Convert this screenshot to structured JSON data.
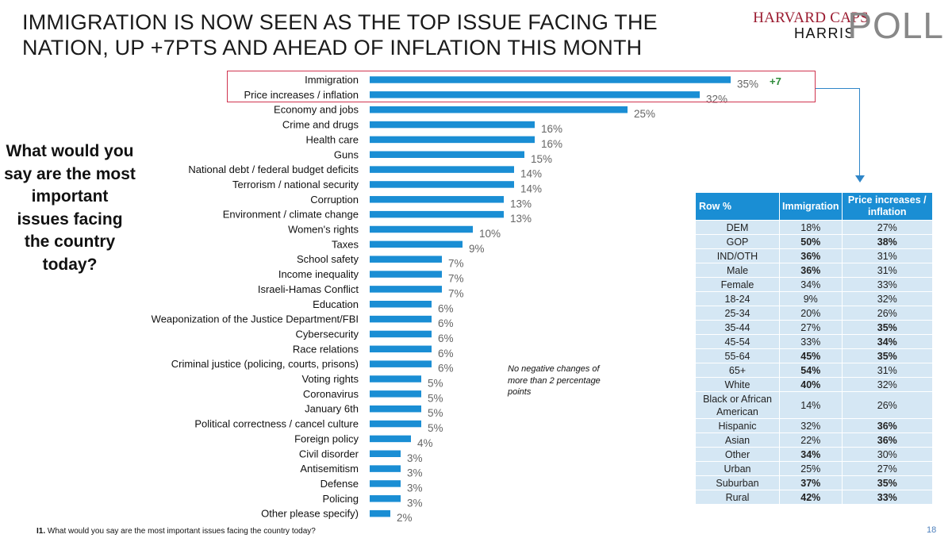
{
  "header": {
    "title": "IMMIGRATION IS NOW SEEN AS THE TOP ISSUE FACING THE NATION, UP +7PTS AND AHEAD OF INFLATION THIS MONTH",
    "logo_line1": "HARVARD CAPS",
    "logo_line2": "HARRIS",
    "logo_line3": "POLL"
  },
  "question": "What would you say are the most important issues facing the country today?",
  "note": "No negative changes of more than 2 percentage points",
  "footnote": {
    "code": "I1.",
    "text": "What would you say are the most important issues facing the country today?"
  },
  "page_number": "18",
  "highlight": {
    "change_label": "+7"
  },
  "colors": {
    "bar": "#1a8ed4",
    "highlight_border": "#d0344f",
    "change": "#2e8b3a",
    "table_header": "#1a8ed4",
    "table_cell": "#d5e7f4"
  },
  "chart_data": {
    "type": "bar",
    "orientation": "horizontal",
    "title": "IMMIGRATION IS NOW SEEN AS THE TOP ISSUE FACING THE NATION, UP +7PTS AND AHEAD OF INFLATION THIS MONTH",
    "value_suffix": "%",
    "xlim": [
      0,
      35
    ],
    "grid": false,
    "categories": [
      "Immigration",
      "Price increases / inflation",
      "Economy and jobs",
      "Crime and drugs",
      "Health care",
      "Guns",
      "National debt / federal budget deficits",
      "Terrorism / national security",
      "Corruption",
      "Environment / climate change",
      "Women's rights",
      "Taxes",
      "School safety",
      "Income inequality",
      "Israeli-Hamas Conflict",
      "Education",
      "Weaponization of the Justice Department/FBI",
      "Cybersecurity",
      "Race relations",
      "Criminal justice (policing, courts, prisons)",
      "Voting rights",
      "Coronavirus",
      "January 6th",
      "Political correctness / cancel culture",
      "Foreign policy",
      "Civil disorder",
      "Antisemitism",
      "Defense",
      "Policing",
      "Other please specify)"
    ],
    "values": [
      35,
      32,
      25,
      16,
      16,
      15,
      14,
      14,
      13,
      13,
      10,
      9,
      7,
      7,
      7,
      6,
      6,
      6,
      6,
      6,
      5,
      5,
      5,
      5,
      4,
      3,
      3,
      3,
      3,
      2
    ]
  },
  "table": {
    "headers": [
      "Row %",
      "Immigration",
      "Price increases / inflation"
    ],
    "rows": [
      {
        "label": "DEM",
        "imm": "18%",
        "imm_bold": false,
        "inf": "27%",
        "inf_bold": false
      },
      {
        "label": "GOP",
        "imm": "50%",
        "imm_bold": true,
        "inf": "38%",
        "inf_bold": true
      },
      {
        "label": "IND/OTH",
        "imm": "36%",
        "imm_bold": true,
        "inf": "31%",
        "inf_bold": false
      },
      {
        "label": "Male",
        "imm": "36%",
        "imm_bold": true,
        "inf": "31%",
        "inf_bold": false
      },
      {
        "label": "Female",
        "imm": "34%",
        "imm_bold": false,
        "inf": "33%",
        "inf_bold": false
      },
      {
        "label": "18-24",
        "imm": "9%",
        "imm_bold": false,
        "inf": "32%",
        "inf_bold": false
      },
      {
        "label": "25-34",
        "imm": "20%",
        "imm_bold": false,
        "inf": "26%",
        "inf_bold": false
      },
      {
        "label": "35-44",
        "imm": "27%",
        "imm_bold": false,
        "inf": "35%",
        "inf_bold": true
      },
      {
        "label": "45-54",
        "imm": "33%",
        "imm_bold": false,
        "inf": "34%",
        "inf_bold": true
      },
      {
        "label": "55-64",
        "imm": "45%",
        "imm_bold": true,
        "inf": "35%",
        "inf_bold": true
      },
      {
        "label": "65+",
        "imm": "54%",
        "imm_bold": true,
        "inf": "31%",
        "inf_bold": false
      },
      {
        "label": "White",
        "imm": "40%",
        "imm_bold": true,
        "inf": "32%",
        "inf_bold": false
      },
      {
        "label": "Black or African American",
        "imm": "14%",
        "imm_bold": false,
        "inf": "26%",
        "inf_bold": false,
        "tall": true
      },
      {
        "label": "Hispanic",
        "imm": "32%",
        "imm_bold": false,
        "inf": "36%",
        "inf_bold": true
      },
      {
        "label": "Asian",
        "imm": "22%",
        "imm_bold": false,
        "inf": "36%",
        "inf_bold": true
      },
      {
        "label": "Other",
        "imm": "34%",
        "imm_bold": true,
        "inf": "30%",
        "inf_bold": false
      },
      {
        "label": "Urban",
        "imm": "25%",
        "imm_bold": false,
        "inf": "27%",
        "inf_bold": false
      },
      {
        "label": "Suburban",
        "imm": "37%",
        "imm_bold": true,
        "inf": "35%",
        "inf_bold": true
      },
      {
        "label": "Rural",
        "imm": "42%",
        "imm_bold": true,
        "inf": "33%",
        "inf_bold": true
      }
    ]
  }
}
